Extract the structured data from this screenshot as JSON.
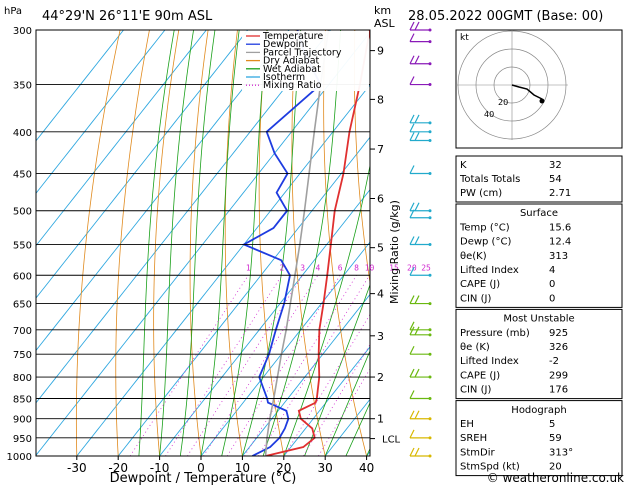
{
  "header": {
    "location": "44°29'N  26°11'E  90m  ASL",
    "datetime": "28.05.2022  00GMT  (Base: 00)",
    "hpa_label": "hPa",
    "km_label": "km",
    "asl_label": "ASL"
  },
  "chart_data": {
    "type": "line",
    "title": "Skew-T log-P diagram",
    "xlabel": "Dewpoint / Temperature (°C)",
    "ylabel": "hPa",
    "right_axis_label": "Mixing Ratio (g/kg)",
    "pressure_levels": [
      300,
      350,
      400,
      450,
      500,
      550,
      600,
      650,
      700,
      750,
      800,
      850,
      900,
      950,
      1000
    ],
    "temp_ticks": [
      -30,
      -20,
      -10,
      0,
      10,
      20,
      30,
      40
    ],
    "km_ticks": [
      {
        "label": "9",
        "p": 318
      },
      {
        "label": "8",
        "p": 365
      },
      {
        "label": "7",
        "p": 420
      },
      {
        "label": "6",
        "p": 483
      },
      {
        "label": "5",
        "p": 555
      },
      {
        "label": "4",
        "p": 632
      },
      {
        "label": "3",
        "p": 712
      },
      {
        "label": "2",
        "p": 800
      },
      {
        "label": "1",
        "p": 900
      }
    ],
    "lcl": {
      "label": "LCL",
      "p": 952
    },
    "mixing_ratio_labels": [
      "1",
      "2",
      "3",
      "4",
      "6",
      "8",
      "10",
      "15",
      "20",
      "25"
    ],
    "mixing_ratio_values": [
      1,
      2,
      3,
      4,
      6,
      8,
      10,
      15,
      20,
      25
    ],
    "series": [
      {
        "name": "Temperature",
        "color": "#e03030",
        "points": [
          [
            1000,
            15.6
          ],
          [
            975,
            23.0
          ],
          [
            950,
            24.0
          ],
          [
            925,
            21.6
          ],
          [
            900,
            17.0
          ],
          [
            880,
            15.0
          ],
          [
            860,
            17.5
          ],
          [
            850,
            17.0
          ],
          [
            800,
            13.5
          ],
          [
            750,
            9.0
          ],
          [
            700,
            4.5
          ],
          [
            650,
            0.5
          ],
          [
            600,
            -4.0
          ],
          [
            550,
            -9.0
          ],
          [
            500,
            -14.5
          ],
          [
            450,
            -19.5
          ],
          [
            400,
            -26.0
          ],
          [
            350,
            -32.5
          ],
          [
            300,
            -40.5
          ]
        ]
      },
      {
        "name": "Dewpoint",
        "color": "#1e3ce0",
        "points": [
          [
            1000,
            12.4
          ],
          [
            975,
            15.0
          ],
          [
            950,
            15.5
          ],
          [
            925,
            15.0
          ],
          [
            900,
            14.0
          ],
          [
            880,
            12.0
          ],
          [
            860,
            6.0
          ],
          [
            850,
            5.0
          ],
          [
            800,
            -1.0
          ],
          [
            750,
            -3.0
          ],
          [
            700,
            -6.0
          ],
          [
            650,
            -9.0
          ],
          [
            600,
            -13.0
          ],
          [
            575,
            -18.0
          ],
          [
            550,
            -30.0
          ],
          [
            525,
            -26.0
          ],
          [
            500,
            -26.0
          ],
          [
            475,
            -32.0
          ],
          [
            450,
            -33.0
          ],
          [
            425,
            -40.0
          ],
          [
            400,
            -46.0
          ],
          [
            350,
            -42.0
          ],
          [
            320,
            -52.0
          ],
          [
            300,
            -58.0
          ]
        ]
      },
      {
        "name": "Parcel Trajectory",
        "color": "#a0a0a0",
        "points": [
          [
            1000,
            15.6
          ],
          [
            952,
            12.6
          ],
          [
            900,
            9.5
          ],
          [
            850,
            6.6
          ],
          [
            800,
            3.4
          ],
          [
            750,
            0.0
          ],
          [
            700,
            -3.5
          ],
          [
            650,
            -7.5
          ],
          [
            600,
            -11.8
          ],
          [
            550,
            -16.5
          ],
          [
            500,
            -21.8
          ],
          [
            450,
            -27.8
          ],
          [
            400,
            -34.5
          ],
          [
            350,
            -42.0
          ],
          [
            300,
            -50.5
          ]
        ]
      }
    ],
    "legend": [
      {
        "label": "Temperature",
        "color": "#e03030",
        "style": "solid"
      },
      {
        "label": "Dewpoint",
        "color": "#1e3ce0",
        "style": "solid"
      },
      {
        "label": "Parcel Trajectory",
        "color": "#a0a0a0",
        "style": "solid"
      },
      {
        "label": "Dry Adiabat",
        "color": "#e08a1e",
        "style": "solid"
      },
      {
        "label": "Wet Adiabat",
        "color": "#1aa01a",
        "style": "solid"
      },
      {
        "label": "Isotherm",
        "color": "#30a8e0",
        "style": "solid"
      },
      {
        "label": "Mixing Ratio",
        "color": "#d02ad0",
        "style": "dotted"
      }
    ],
    "legend_position": "top-right"
  },
  "hodograph": {
    "unit_label": "kt",
    "ring_labels": [
      "20",
      "40"
    ]
  },
  "indices": {
    "top": [
      {
        "label": "K",
        "value": "32"
      },
      {
        "label": "Totals Totals",
        "value": "54"
      },
      {
        "label": "PW (cm)",
        "value": "2.71"
      }
    ],
    "surface_title": "Surface",
    "surface": [
      {
        "label": "Temp (°C)",
        "value": "15.6"
      },
      {
        "label": "Dewp (°C)",
        "value": "12.4"
      },
      {
        "label": "θe(K)",
        "value": "313"
      },
      {
        "label": "Lifted Index",
        "value": "4"
      },
      {
        "label": "CAPE (J)",
        "value": "0"
      },
      {
        "label": "CIN (J)",
        "value": "0"
      }
    ],
    "unstable_title": "Most Unstable",
    "unstable": [
      {
        "label": "Pressure (mb)",
        "value": "925"
      },
      {
        "label": "θe (K)",
        "value": "326"
      },
      {
        "label": "Lifted Index",
        "value": "-2"
      },
      {
        "label": "CAPE (J)",
        "value": "299"
      },
      {
        "label": "CIN (J)",
        "value": "176"
      }
    ],
    "hodo_title": "Hodograph",
    "hodo": [
      {
        "label": "EH",
        "value": "5"
      },
      {
        "label": "SREH",
        "value": "59"
      },
      {
        "label": "StmDir",
        "value": "313°"
      },
      {
        "label": "StmSpd (kt)",
        "value": "20"
      }
    ]
  },
  "footer": {
    "copyright": "© weatheronline.co.uk"
  }
}
